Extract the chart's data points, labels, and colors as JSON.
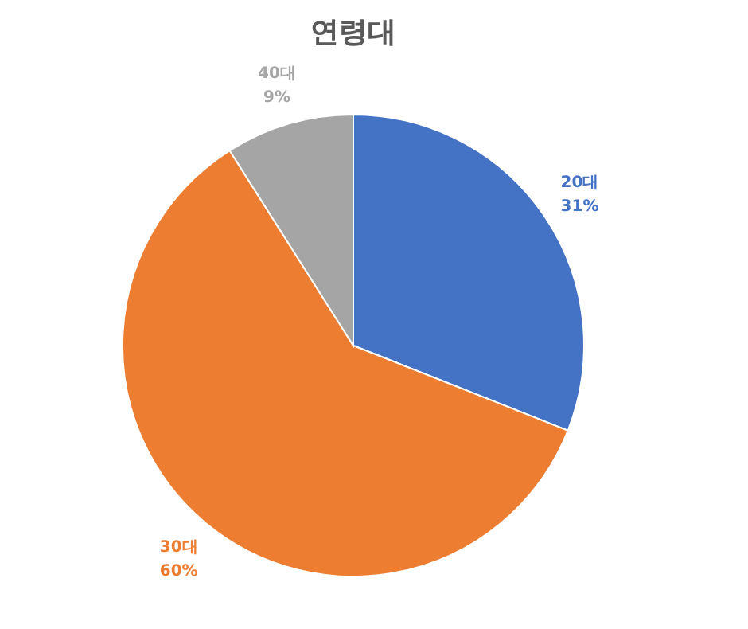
{
  "chart_data": {
    "type": "pie",
    "title": "연령대",
    "categories": [
      "20대",
      "30대",
      "40대"
    ],
    "values": [
      31,
      60,
      9
    ],
    "value_labels": [
      "31%",
      "60%",
      "9%"
    ],
    "colors": [
      "#4472c4",
      "#ed7d31",
      "#a5a5a5"
    ]
  }
}
